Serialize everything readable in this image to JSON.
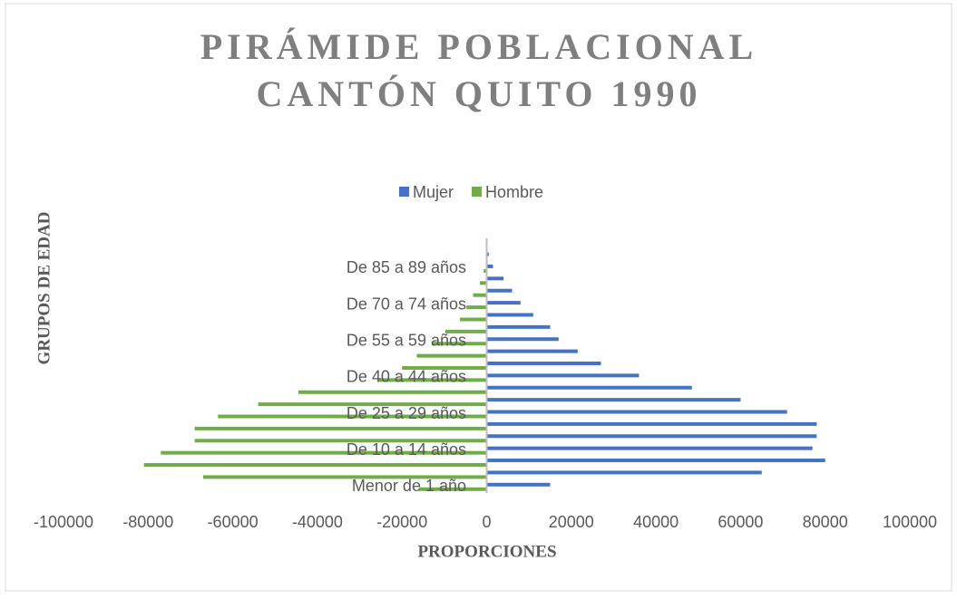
{
  "chart_data": {
    "type": "bar",
    "orientation": "horizontal",
    "title": "PIRÁMIDE POBLACIONAL CANTÓN QUITO 1990",
    "x_label": "PROPORCIONES",
    "y_label": "GRUPOS DE EDAD",
    "categories": [
      "Menor de 1 año",
      null,
      null,
      "De 10 a 14 años",
      null,
      null,
      "De 25 a 29 años",
      null,
      null,
      "De 40 a 44 años",
      null,
      null,
      "De 55 a 59 años",
      null,
      null,
      "De 70 a 74 años",
      null,
      null,
      "De 85 a 89 años",
      null,
      null
    ],
    "series": [
      {
        "name": "Mujer",
        "color": "#4472c4",
        "values": [
          15000,
          65000,
          80000,
          77000,
          78000,
          78000,
          71000,
          60000,
          48500,
          36000,
          27000,
          21500,
          17000,
          15000,
          11000,
          8000,
          6000,
          4000,
          1500,
          500,
          200
        ]
      },
      {
        "name": "Hombre",
        "color": "#70ad47",
        "values": [
          -16000,
          -67000,
          -81000,
          -77000,
          -69000,
          -69000,
          -63500,
          -54000,
          -44500,
          -25500,
          -20000,
          -16500,
          -13000,
          -9800,
          -6300,
          -4800,
          -3200,
          -1600,
          -700,
          -200,
          -100
        ]
      }
    ],
    "xlim": [
      -100000,
      100000
    ],
    "xticks": [
      -100000,
      -80000,
      -60000,
      -40000,
      -20000,
      0,
      20000,
      40000,
      60000,
      80000,
      100000
    ],
    "legend": "top"
  }
}
